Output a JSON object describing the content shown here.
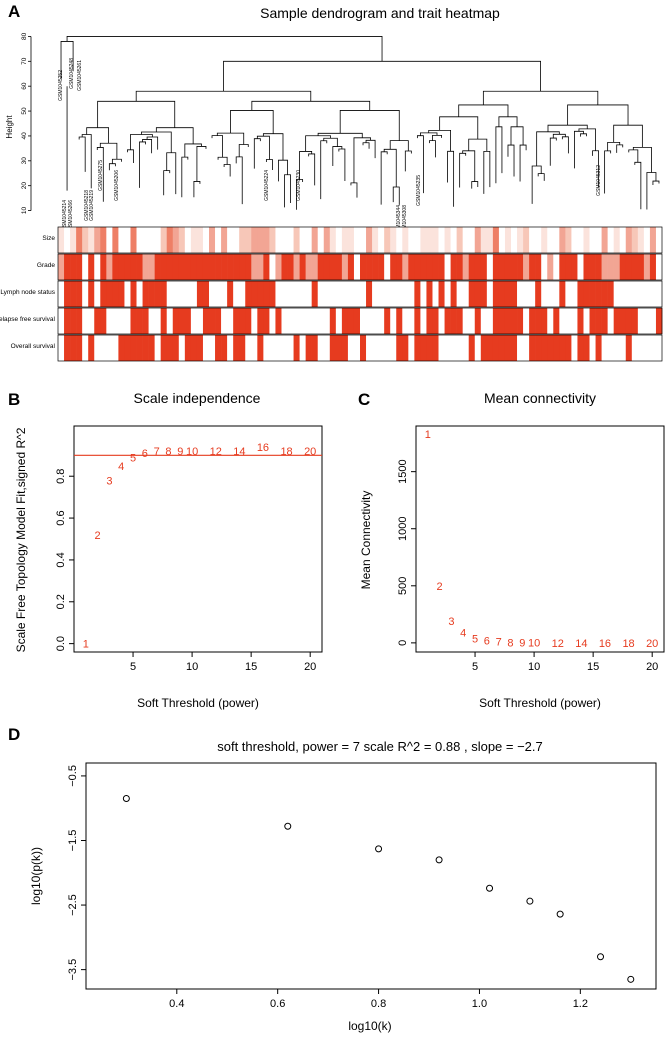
{
  "colors": {
    "red": "#e63b1f",
    "pink_light": "#fadcd6",
    "pink_mid": "#f2a594",
    "reference_line": "#e63b1f",
    "axis": "#000000"
  },
  "chart_data": [
    {
      "id": "A",
      "panel_label": "A",
      "type": "heatmap",
      "title": "Sample dendrogram and trait heatmap",
      "ylabel": "Height",
      "yticks": [
        10,
        20,
        30,
        40,
        50,
        60,
        70,
        80
      ],
      "ylim": [
        5,
        85
      ],
      "leaf_labels_visible": [
        "GSM1045252",
        "GSM1045248",
        "GSM1045261",
        "GSM1045214",
        "GSM1045266",
        "GSM1045218",
        "GSM1045219",
        "GSM1045275",
        "GSM1045206",
        "GSM1045224",
        "GSM1045230",
        "GSM1045235",
        "GSM1045344",
        "GSM1045308",
        "GSM1045312"
      ],
      "trait_rows": [
        "Size",
        "Grade",
        "Lymph node status",
        "Relapse free survival",
        "Overall survival"
      ],
      "num_samples": 100
    },
    {
      "id": "B",
      "panel_label": "B",
      "type": "scatter",
      "title": "Scale independence",
      "xlabel": "Soft Threshold (power)",
      "ylabel": "Scale Free Topology Model Fit,signed R^2",
      "xlim": [
        0,
        21
      ],
      "ylim": [
        -0.04,
        1.04
      ],
      "xticks": [
        5,
        10,
        15,
        20
      ],
      "yticks": [
        0.0,
        0.2,
        0.4,
        0.6,
        0.8
      ],
      "reference_line_y": 0.9,
      "points": [
        {
          "label": "1",
          "x": 1,
          "y": 0.0
        },
        {
          "label": "2",
          "x": 2,
          "y": 0.52
        },
        {
          "label": "3",
          "x": 3,
          "y": 0.78
        },
        {
          "label": "4",
          "x": 4,
          "y": 0.85
        },
        {
          "label": "5",
          "x": 5,
          "y": 0.89
        },
        {
          "label": "6",
          "x": 6,
          "y": 0.91
        },
        {
          "label": "7",
          "x": 7,
          "y": 0.92
        },
        {
          "label": "8",
          "x": 8,
          "y": 0.92
        },
        {
          "label": "9",
          "x": 9,
          "y": 0.92
        },
        {
          "label": "10",
          "x": 10,
          "y": 0.92
        },
        {
          "label": "12",
          "x": 12,
          "y": 0.92
        },
        {
          "label": "14",
          "x": 14,
          "y": 0.92
        },
        {
          "label": "16",
          "x": 16,
          "y": 0.94
        },
        {
          "label": "18",
          "x": 18,
          "y": 0.92
        },
        {
          "label": "20",
          "x": 20,
          "y": 0.92
        }
      ]
    },
    {
      "id": "C",
      "panel_label": "C",
      "type": "scatter",
      "title": "Mean connectivity",
      "xlabel": "Soft Threshold (power)",
      "ylabel": "Mean Connectivity",
      "xlim": [
        0,
        21
      ],
      "ylim": [
        -80,
        1900
      ],
      "xticks": [
        5,
        10,
        15,
        20
      ],
      "yticks": [
        0,
        500,
        1000,
        1500
      ],
      "points": [
        {
          "label": "1",
          "x": 1,
          "y": 1830
        },
        {
          "label": "2",
          "x": 2,
          "y": 500
        },
        {
          "label": "3",
          "x": 3,
          "y": 190
        },
        {
          "label": "4",
          "x": 4,
          "y": 90
        },
        {
          "label": "5",
          "x": 5,
          "y": 40
        },
        {
          "label": "6",
          "x": 6,
          "y": 20
        },
        {
          "label": "7",
          "x": 7,
          "y": 10
        },
        {
          "label": "8",
          "x": 8,
          "y": 5
        },
        {
          "label": "9",
          "x": 9,
          "y": 3
        },
        {
          "label": "10",
          "x": 10,
          "y": 2
        },
        {
          "label": "12",
          "x": 12,
          "y": 1
        },
        {
          "label": "14",
          "x": 14,
          "y": 0
        },
        {
          "label": "16",
          "x": 16,
          "y": 0
        },
        {
          "label": "18",
          "x": 18,
          "y": 0
        },
        {
          "label": "20",
          "x": 20,
          "y": 0
        }
      ]
    },
    {
      "id": "D",
      "panel_label": "D",
      "type": "scatter",
      "title": "soft threshold, power = 7  scale R^2 = 0.88 , slope = −2.7",
      "xlabel": "log10(k)",
      "ylabel": "log10(p(k))",
      "xlim": [
        0.22,
        1.35
      ],
      "ylim": [
        -3.8,
        -0.3
      ],
      "xticks": [
        0.4,
        0.6,
        0.8,
        1.0,
        1.2
      ],
      "xtick_labels": [
        "0.4",
        "0.6",
        "0.8",
        "1.0",
        "1.2"
      ],
      "yticks": [
        -3.5,
        -2.5,
        -1.5,
        -0.5
      ],
      "ytick_labels": [
        "−3.5",
        "−2.5",
        "−1.5",
        "−0.5"
      ],
      "points": [
        {
          "x": 0.3,
          "y": -0.85
        },
        {
          "x": 0.62,
          "y": -1.28
        },
        {
          "x": 0.8,
          "y": -1.63
        },
        {
          "x": 0.92,
          "y": -1.8
        },
        {
          "x": 1.02,
          "y": -2.24
        },
        {
          "x": 1.1,
          "y": -2.44
        },
        {
          "x": 1.16,
          "y": -2.64
        },
        {
          "x": 1.24,
          "y": -3.3
        },
        {
          "x": 1.3,
          "y": -3.65
        }
      ]
    }
  ]
}
